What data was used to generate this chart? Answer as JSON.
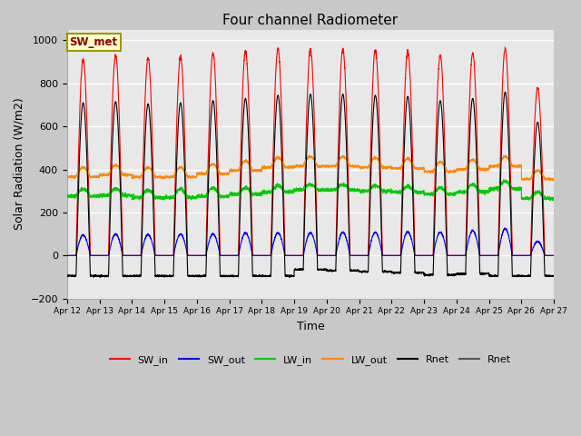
{
  "title": "Four channel Radiometer",
  "xlabel": "Time",
  "ylabel": "Solar Radiation (W/m2)",
  "ylim": [
    -200,
    1050
  ],
  "annotation": "SW_met",
  "fig_bg_color": "#c8c8c8",
  "plot_bg_color": "#e8e8e8",
  "xtick_labels": [
    "Apr 12",
    "Apr 13",
    "Apr 14",
    "Apr 15",
    "Apr 16",
    "Apr 17",
    "Apr 18",
    "Apr 19",
    "Apr 20",
    "Apr 21",
    "Apr 22",
    "Apr 23",
    "Apr 24",
    "Apr 25",
    "Apr 26",
    "Apr 27"
  ],
  "num_days": 15,
  "SW_in_peaks": [
    910,
    930,
    920,
    925,
    940,
    950,
    960,
    960,
    958,
    955,
    952,
    930,
    940,
    960,
    780
  ],
  "SW_out_peaks": [
    95,
    100,
    97,
    100,
    100,
    105,
    105,
    105,
    108,
    108,
    110,
    108,
    115,
    125,
    65
  ],
  "Rnet_peaks": [
    710,
    715,
    705,
    710,
    720,
    730,
    745,
    750,
    750,
    745,
    740,
    720,
    730,
    760,
    620
  ],
  "Rnet_night": [
    -95,
    -95,
    -95,
    -95,
    -95,
    -95,
    -95,
    -65,
    -70,
    -75,
    -80,
    -90,
    -85,
    -95,
    -95
  ],
  "LW_in_base": [
    275,
    280,
    270,
    270,
    275,
    285,
    295,
    305,
    305,
    300,
    295,
    285,
    295,
    310,
    265
  ],
  "LW_in_day": [
    310,
    310,
    305,
    310,
    315,
    315,
    325,
    330,
    330,
    325,
    320,
    315,
    330,
    345,
    295
  ],
  "LW_out_base": [
    365,
    375,
    365,
    365,
    380,
    395,
    410,
    415,
    415,
    410,
    405,
    390,
    400,
    415,
    355
  ],
  "LW_out_day": [
    410,
    420,
    410,
    410,
    425,
    440,
    455,
    460,
    460,
    455,
    450,
    435,
    445,
    460,
    395
  ]
}
